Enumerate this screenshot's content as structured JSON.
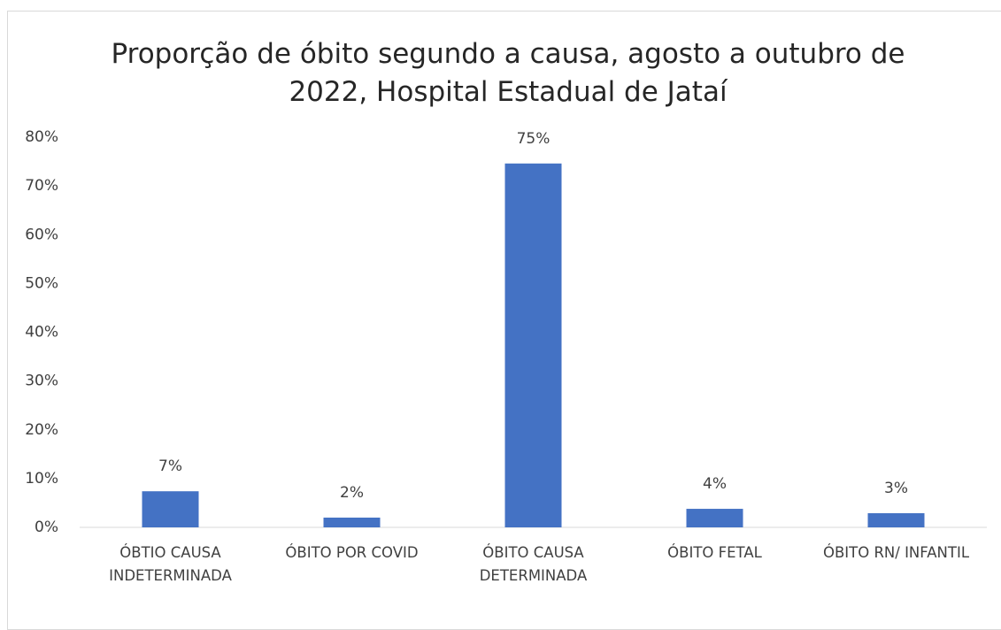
{
  "chart_data": {
    "type": "bar",
    "title": "Proporção de óbito segundo a causa, agosto a outubro de 2022, Hospital Estadual de Jataí",
    "categories": [
      "ÓBTIO CAUSA INDETERMINADA",
      "ÓBITO POR COVID",
      "ÓBITO CAUSA DETERMINADA",
      "ÓBITO FETAL",
      "ÓBITO RN/ INFANTIL"
    ],
    "values": [
      7.4,
      2,
      74.6,
      3.8,
      2.9
    ],
    "value_labels": [
      "7%",
      "2%",
      "75%",
      "4%",
      "3%"
    ],
    "color": "#4472c4",
    "ylim": [
      0,
      80
    ],
    "yticks": [
      {
        "value": 0,
        "label": "0%"
      },
      {
        "value": 10,
        "label": "10%"
      },
      {
        "value": 20,
        "label": "20%"
      },
      {
        "value": 30,
        "label": "30%"
      },
      {
        "value": 40,
        "label": "40%"
      },
      {
        "value": 50,
        "label": "50%"
      },
      {
        "value": 60,
        "label": "60%"
      },
      {
        "value": 70,
        "label": "70%"
      },
      {
        "value": 80,
        "label": "80%"
      }
    ],
    "grid": false
  }
}
